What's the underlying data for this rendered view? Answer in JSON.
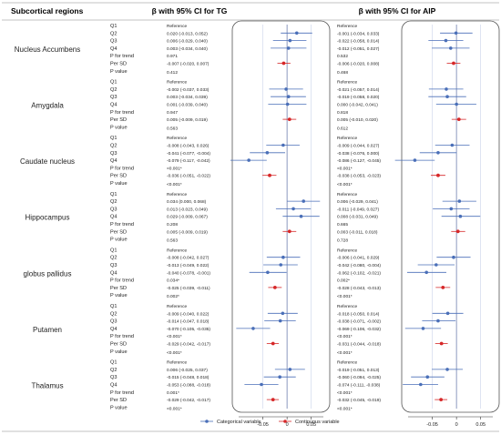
{
  "chart_data": {
    "type": "forest",
    "title": "",
    "header_left": "Subcortical regions",
    "panels": [
      {
        "title": "β with 95% CI for TG",
        "axis_ticks": [
          -0.05,
          0,
          0.05
        ],
        "xlim": [
          -0.1,
          0.075
        ]
      },
      {
        "title": "β with 95% CI for AIP",
        "axis_ticks": [
          -0.05,
          0,
          0.05
        ],
        "xlim": [
          -0.1,
          0.075
        ]
      }
    ],
    "row_labels": [
      "Q1",
      "Q2",
      "Q3",
      "Q4",
      "P for trend",
      "Per SD",
      "P value"
    ],
    "legend": [
      {
        "name": "Categorical variable",
        "color": "#4a6fb8"
      },
      {
        "name": "Continuous variable",
        "color": "#d62728"
      }
    ],
    "colors": {
      "categorical": "#4a6fb8",
      "continuous": "#d62728",
      "grid": "#bfcbe6",
      "panel_border": "#555555"
    },
    "regions": [
      {
        "name": "Nucleus Accumbens",
        "tg": {
          "text": [
            "Reference",
            "0.020 (-0.013, 0.052)",
            "0.006 (-0.029, 0.040)",
            "0.003 (-0.034, 0.040)",
            "0.971",
            "-0.007 (-0.020, 0.007)",
            "0.412"
          ],
          "points": [
            {
              "est": 0.02,
              "lo": -0.013,
              "hi": 0.052
            },
            {
              "est": 0.006,
              "lo": -0.029,
              "hi": 0.04
            },
            {
              "est": 0.003,
              "lo": -0.034,
              "hi": 0.04
            }
          ],
          "sd": {
            "est": -0.007,
            "lo": -0.02,
            "hi": 0.007
          }
        },
        "aip": {
          "text": [
            "Reference",
            "-0.001 (-0.034, 0.033)",
            "-0.022 (-0.058, 0.014)",
            "-0.012 (-0.051, 0.027)",
            "0.532",
            "-0.006 (-0.020, 0.008)",
            "0.468"
          ],
          "points": [
            {
              "est": -0.001,
              "lo": -0.034,
              "hi": 0.033
            },
            {
              "est": -0.022,
              "lo": -0.058,
              "hi": 0.014
            },
            {
              "est": -0.012,
              "lo": -0.051,
              "hi": 0.027
            }
          ],
          "sd": {
            "est": -0.006,
            "lo": -0.02,
            "hi": 0.008
          }
        }
      },
      {
        "name": "Amygdala",
        "tg": {
          "text": [
            "Reference",
            "-0.002 (-0.037, 0.033)",
            "0.003 (-0.034, 0.039)",
            "0.001 (-0.039, 0.040)",
            "0.947",
            "0.005 (-0.009, 0.019)",
            "0.563"
          ],
          "points": [
            {
              "est": -0.002,
              "lo": -0.037,
              "hi": 0.033
            },
            {
              "est": 0.003,
              "lo": -0.034,
              "hi": 0.039
            },
            {
              "est": 0.001,
              "lo": -0.039,
              "hi": 0.04
            }
          ],
          "sd": {
            "est": 0.005,
            "lo": -0.009,
            "hi": 0.019
          }
        },
        "aip": {
          "text": [
            "Reference",
            "-0.021 (-0.057, 0.014)",
            "-0.019 (-0.058, 0.020)",
            "0.000 (-0.042, 0.041)",
            "0.818",
            "0.005 (-0.010, 0.020)",
            "0.612"
          ],
          "points": [
            {
              "est": -0.021,
              "lo": -0.057,
              "hi": 0.014
            },
            {
              "est": -0.019,
              "lo": -0.058,
              "hi": 0.02
            },
            {
              "est": 0.0,
              "lo": -0.042,
              "hi": 0.041
            }
          ],
          "sd": {
            "est": 0.005,
            "lo": -0.01,
            "hi": 0.02
          }
        }
      },
      {
        "name": "Caudate nucleus",
        "tg": {
          "text": [
            "Reference",
            "-0.008 (-0.043, 0.026)",
            "-0.041 (-0.077, -0.004)",
            "-0.079 (-0.117, -0.042)",
            "<0.001*",
            "-0.036 (-0.051, -0.022)",
            "<0.001*"
          ],
          "points": [
            {
              "est": -0.008,
              "lo": -0.043,
              "hi": 0.026
            },
            {
              "est": -0.041,
              "lo": -0.077,
              "hi": -0.004
            },
            {
              "est": -0.079,
              "lo": -0.117,
              "hi": -0.042
            }
          ],
          "sd": {
            "est": -0.036,
            "lo": -0.051,
            "hi": -0.022
          }
        },
        "aip": {
          "text": [
            "Reference",
            "-0.009 (-0.044, 0.027)",
            "-0.038 (-0.076, 0.000)",
            "-0.086 (-0.127, -0.045)",
            "<0.001*",
            "-0.038 (-0.053, -0.023)",
            "<0.001*"
          ],
          "points": [
            {
              "est": -0.009,
              "lo": -0.044,
              "hi": 0.027
            },
            {
              "est": -0.038,
              "lo": -0.076,
              "hi": 0.0
            },
            {
              "est": -0.086,
              "lo": -0.127,
              "hi": -0.045
            }
          ],
          "sd": {
            "est": -0.038,
            "lo": -0.053,
            "hi": -0.023
          }
        }
      },
      {
        "name": "Hippocampus",
        "tg": {
          "text": [
            "Reference",
            "0.034 (0.000, 0.068)",
            "0.013 (-0.023, 0.049)",
            "0.029 (-0.009, 0.067)",
            "0.208",
            "0.005 (-0.009, 0.019)",
            "0.563"
          ],
          "points": [
            {
              "est": 0.034,
              "lo": 0.0,
              "hi": 0.068
            },
            {
              "est": 0.013,
              "lo": -0.023,
              "hi": 0.049
            },
            {
              "est": 0.029,
              "lo": -0.009,
              "hi": 0.067
            }
          ],
          "sd": {
            "est": 0.005,
            "lo": -0.009,
            "hi": 0.019
          }
        },
        "aip": {
          "text": [
            "Reference",
            "0.006 (-0.029, 0.041)",
            "-0.011 (-0.049, 0.027)",
            "0.008 (-0.031, 0.049)",
            "0.665",
            "0.003 (-0.011, 0.018)",
            "0.728"
          ],
          "points": [
            {
              "est": 0.006,
              "lo": -0.029,
              "hi": 0.041
            },
            {
              "est": -0.011,
              "lo": -0.049,
              "hi": 0.027
            },
            {
              "est": 0.008,
              "lo": -0.031,
              "hi": 0.049
            }
          ],
          "sd": {
            "est": 0.003,
            "lo": -0.011,
            "hi": 0.018
          }
        }
      },
      {
        "name": "globus pallidus",
        "tg": {
          "text": [
            "Reference",
            "-0.008 (-0.042, 0.027)",
            "-0.013 (-0.049, 0.022)",
            "-0.040 (-0.078, -0.001)",
            "0.034*",
            "-0.025 (-0.039, -0.011)",
            "0.002*"
          ],
          "points": [
            {
              "est": -0.008,
              "lo": -0.042,
              "hi": 0.027
            },
            {
              "est": -0.013,
              "lo": -0.049,
              "hi": 0.022
            },
            {
              "est": -0.04,
              "lo": -0.078,
              "hi": -0.001
            }
          ],
          "sd": {
            "est": -0.025,
            "lo": -0.039,
            "hi": -0.011
          }
        },
        "aip": {
          "text": [
            "Reference",
            "-0.006 (-0.041, 0.029)",
            "-0.042 (-0.080, -0.004)",
            "-0.062 (-0.102, -0.021)",
            "0.002*",
            "-0.028 (-0.043, -0.013)",
            "<0.001*"
          ],
          "points": [
            {
              "est": -0.006,
              "lo": -0.041,
              "hi": 0.029
            },
            {
              "est": -0.042,
              "lo": -0.08,
              "hi": -0.004
            },
            {
              "est": -0.062,
              "lo": -0.102,
              "hi": -0.021
            }
          ],
          "sd": {
            "est": -0.028,
            "lo": -0.043,
            "hi": -0.013
          }
        }
      },
      {
        "name": "Putamen",
        "tg": {
          "text": [
            "Reference",
            "-0.009 (-0.040, 0.022)",
            "-0.014 (-0.047, 0.018)",
            "-0.070 (-0.105, -0.035)",
            "<0.001*",
            "-0.029 (-0.042, -0.017)",
            "<0.001*"
          ],
          "points": [
            {
              "est": -0.009,
              "lo": -0.04,
              "hi": 0.022
            },
            {
              "est": -0.014,
              "lo": -0.047,
              "hi": 0.018
            },
            {
              "est": -0.07,
              "lo": -0.105,
              "hi": -0.035
            }
          ],
          "sd": {
            "est": -0.029,
            "lo": -0.042,
            "hi": -0.017
          }
        },
        "aip": {
          "text": [
            "Reference",
            "-0.018 (-0.050, 0.014)",
            "-0.038 (-0.071, -0.002)",
            "-0.069 (-0.106, -0.032)",
            "<0.001*",
            "-0.031 (-0.044, -0.018)",
            "<0.001*"
          ],
          "points": [
            {
              "est": -0.018,
              "lo": -0.05,
              "hi": 0.014
            },
            {
              "est": -0.038,
              "lo": -0.071,
              "hi": -0.002
            },
            {
              "est": -0.069,
              "lo": -0.106,
              "hi": -0.032
            }
          ],
          "sd": {
            "est": -0.031,
            "lo": -0.044,
            "hi": -0.018
          }
        }
      },
      {
        "name": "Thalamus",
        "tg": {
          "text": [
            "Reference",
            "0.006 (-0.025, 0.037)",
            "-0.015 (-0.048, 0.018)",
            "-0.053 (-0.088, -0.018)",
            "0.001*",
            "-0.029 (-0.042, -0.017)",
            "<0.001*"
          ],
          "points": [
            {
              "est": 0.006,
              "lo": -0.025,
              "hi": 0.037
            },
            {
              "est": -0.015,
              "lo": -0.048,
              "hi": 0.018
            },
            {
              "est": -0.053,
              "lo": -0.088,
              "hi": -0.018
            }
          ],
          "sd": {
            "est": -0.029,
            "lo": -0.042,
            "hi": -0.017
          }
        },
        "aip": {
          "text": [
            "Reference",
            "-0.019 (-0.051, 0.013)",
            "-0.060 (-0.094, -0.025)",
            "-0.074 (-0.111, -0.038)",
            "<0.001*",
            "-0.032 (-0.045, -0.019)",
            "<0.001*"
          ],
          "points": [
            {
              "est": -0.019,
              "lo": -0.051,
              "hi": 0.013
            },
            {
              "est": -0.06,
              "lo": -0.094,
              "hi": -0.025
            },
            {
              "est": -0.074,
              "lo": -0.111,
              "hi": -0.038
            }
          ],
          "sd": {
            "est": -0.032,
            "lo": -0.045,
            "hi": -0.019
          }
        }
      }
    ]
  }
}
